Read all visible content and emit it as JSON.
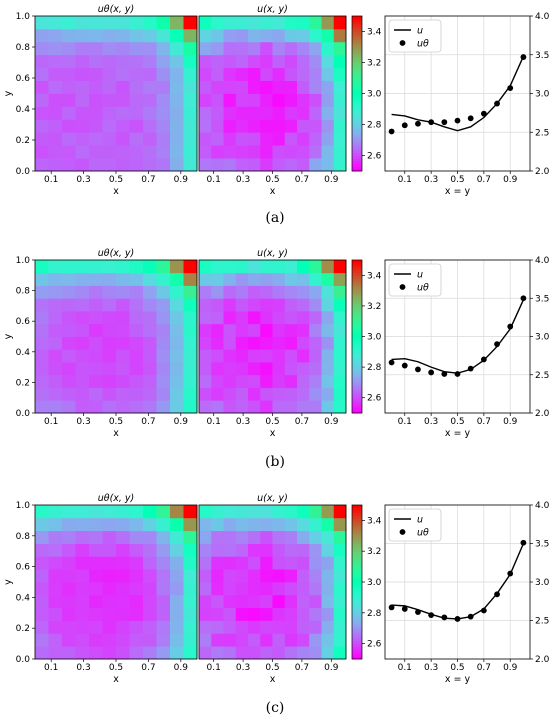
{
  "figure": {
    "colormap": "rainbow",
    "colors": {
      "grid": "#d9d9d9",
      "line": "#000000",
      "marker": "#000000",
      "legend_bg": "#ffffff",
      "legend_edge": "#cccccc"
    }
  },
  "chart_data": [
    {
      "panel": "(a)",
      "caption_letter": "a",
      "heatmap_titles": [
        "uθ(x, y)",
        "u(x, y)"
      ],
      "heatmap_xlabel": "x",
      "heatmap_ylabel": "y",
      "heatmap_xticks": [
        "0.1",
        "0.3",
        "0.5",
        "0.7",
        "0.9"
      ],
      "heatmap_yticks": [
        "0.0",
        "0.2",
        "0.4",
        "0.6",
        "0.8",
        "1.0"
      ],
      "colorbar": {
        "min": 2.5,
        "max": 3.5,
        "ticks": [
          "2.6",
          "2.8",
          "3.0",
          "3.2",
          "3.4"
        ]
      },
      "heatmap_a": {
        "type": "heatmap",
        "model": "smooth",
        "base": 2.62,
        "center": 0.5,
        "bowl": 0.0,
        "offset": 0.0,
        "noise": 0.02
      },
      "heatmap_b": {
        "type": "heatmap",
        "model": "bowl",
        "base": 2.62,
        "center": 0.45,
        "bowl": 0.35,
        "offset": 0.0,
        "noise": 0.04
      },
      "line": {
        "type": "line",
        "xlabel": "x = y",
        "xticks": [
          "0.1",
          "0.3",
          "0.5",
          "0.7",
          "0.9"
        ],
        "ylim": [
          2.0,
          4.0
        ],
        "yticks": [
          "2.0",
          "2.5",
          "3.0",
          "3.5",
          "4.0"
        ],
        "legend": [
          "u",
          "uθ"
        ],
        "series": [
          {
            "name": "u",
            "style": "line",
            "x": [
              0.0,
              0.1,
              0.2,
              0.3,
              0.4,
              0.5,
              0.6,
              0.7,
              0.8,
              0.9,
              1.0
            ],
            "y": [
              2.73,
              2.71,
              2.66,
              2.63,
              2.57,
              2.52,
              2.57,
              2.69,
              2.87,
              3.1,
              3.48
            ]
          },
          {
            "name": "uθ",
            "style": "scatter",
            "x": [
              0.0,
              0.1,
              0.2,
              0.3,
              0.4,
              0.5,
              0.6,
              0.7,
              0.8,
              0.9,
              1.0
            ],
            "y": [
              2.51,
              2.59,
              2.61,
              2.63,
              2.63,
              2.65,
              2.68,
              2.74,
              2.87,
              3.07,
              3.47
            ]
          }
        ]
      }
    },
    {
      "panel": "(b)",
      "caption_letter": "b",
      "heatmap_titles": [
        "uθ(x, y)",
        "u(x, y)"
      ],
      "heatmap_xlabel": "x",
      "heatmap_ylabel": "y",
      "heatmap_xticks": [
        "0.1",
        "0.3",
        "0.5",
        "0.7",
        "0.9"
      ],
      "heatmap_yticks": [
        "0.0",
        "0.2",
        "0.4",
        "0.6",
        "0.8",
        "1.0"
      ],
      "colorbar": {
        "min": 2.5,
        "max": 3.5,
        "ticks": [
          "2.6",
          "2.8",
          "3.0",
          "3.2",
          "3.4"
        ]
      },
      "heatmap_a": {
        "type": "heatmap",
        "model": "bowl",
        "base": 2.62,
        "center": 0.45,
        "bowl": 0.25,
        "offset": 0.02,
        "noise": 0.02
      },
      "heatmap_b": {
        "type": "heatmap",
        "model": "bowl",
        "base": 2.62,
        "center": 0.45,
        "bowl": 0.35,
        "offset": 0.0,
        "noise": 0.04
      },
      "line": {
        "type": "line",
        "xlabel": "x = y",
        "xticks": [
          "0.1",
          "0.3",
          "0.5",
          "0.7",
          "0.9"
        ],
        "ylim": [
          2.0,
          4.0
        ],
        "yticks": [
          "2.0",
          "2.5",
          "3.0",
          "3.5",
          "4.0"
        ],
        "legend": [
          "u",
          "uθ"
        ],
        "series": [
          {
            "name": "u",
            "style": "line",
            "x": [
              0.0,
              0.1,
              0.2,
              0.3,
              0.4,
              0.5,
              0.6,
              0.7,
              0.8,
              0.9,
              1.0
            ],
            "y": [
              2.7,
              2.71,
              2.67,
              2.6,
              2.54,
              2.52,
              2.57,
              2.69,
              2.87,
              3.1,
              3.48
            ]
          },
          {
            "name": "uθ",
            "style": "scatter",
            "x": [
              0.0,
              0.1,
              0.2,
              0.3,
              0.4,
              0.5,
              0.6,
              0.7,
              0.8,
              0.9,
              1.0
            ],
            "y": [
              2.66,
              2.62,
              2.57,
              2.53,
              2.51,
              2.51,
              2.58,
              2.7,
              2.9,
              3.13,
              3.5
            ]
          }
        ]
      }
    },
    {
      "panel": "(c)",
      "caption_letter": "c",
      "heatmap_titles": [
        "uθ(x, y)",
        "u(x, y)"
      ],
      "heatmap_xlabel": "x",
      "heatmap_ylabel": "y",
      "heatmap_xticks": [
        "0.1",
        "0.3",
        "0.5",
        "0.7",
        "0.9"
      ],
      "heatmap_yticks": [
        "0.0",
        "0.2",
        "0.4",
        "0.6",
        "0.8",
        "1.0"
      ],
      "colorbar": {
        "min": 2.5,
        "max": 3.5,
        "ticks": [
          "2.6",
          "2.8",
          "3.0",
          "3.2",
          "3.4"
        ]
      },
      "heatmap_a": {
        "type": "heatmap",
        "model": "bowl",
        "base": 2.62,
        "center": 0.45,
        "bowl": 0.33,
        "offset": 0.0,
        "noise": 0.02
      },
      "heatmap_b": {
        "type": "heatmap",
        "model": "bowl",
        "base": 2.62,
        "center": 0.45,
        "bowl": 0.35,
        "offset": 0.0,
        "noise": 0.04
      },
      "line": {
        "type": "line",
        "xlabel": "x = y",
        "xticks": [
          "0.1",
          "0.3",
          "0.5",
          "0.7",
          "0.9"
        ],
        "ylim": [
          2.0,
          4.0
        ],
        "yticks": [
          "2.0",
          "2.5",
          "3.0",
          "3.5",
          "4.0"
        ],
        "legend": [
          "u",
          "uθ"
        ],
        "series": [
          {
            "name": "u",
            "style": "line",
            "x": [
              0.0,
              0.1,
              0.2,
              0.3,
              0.4,
              0.5,
              0.6,
              0.7,
              0.8,
              0.9,
              1.0
            ],
            "y": [
              2.7,
              2.69,
              2.64,
              2.58,
              2.53,
              2.52,
              2.55,
              2.65,
              2.85,
              3.1,
              3.5
            ]
          },
          {
            "name": "uθ",
            "style": "scatter",
            "x": [
              0.0,
              0.1,
              0.2,
              0.3,
              0.4,
              0.5,
              0.6,
              0.7,
              0.8,
              0.9,
              1.0
            ],
            "y": [
              2.67,
              2.65,
              2.61,
              2.57,
              2.54,
              2.52,
              2.55,
              2.63,
              2.84,
              3.11,
              3.51
            ]
          }
        ]
      }
    }
  ]
}
